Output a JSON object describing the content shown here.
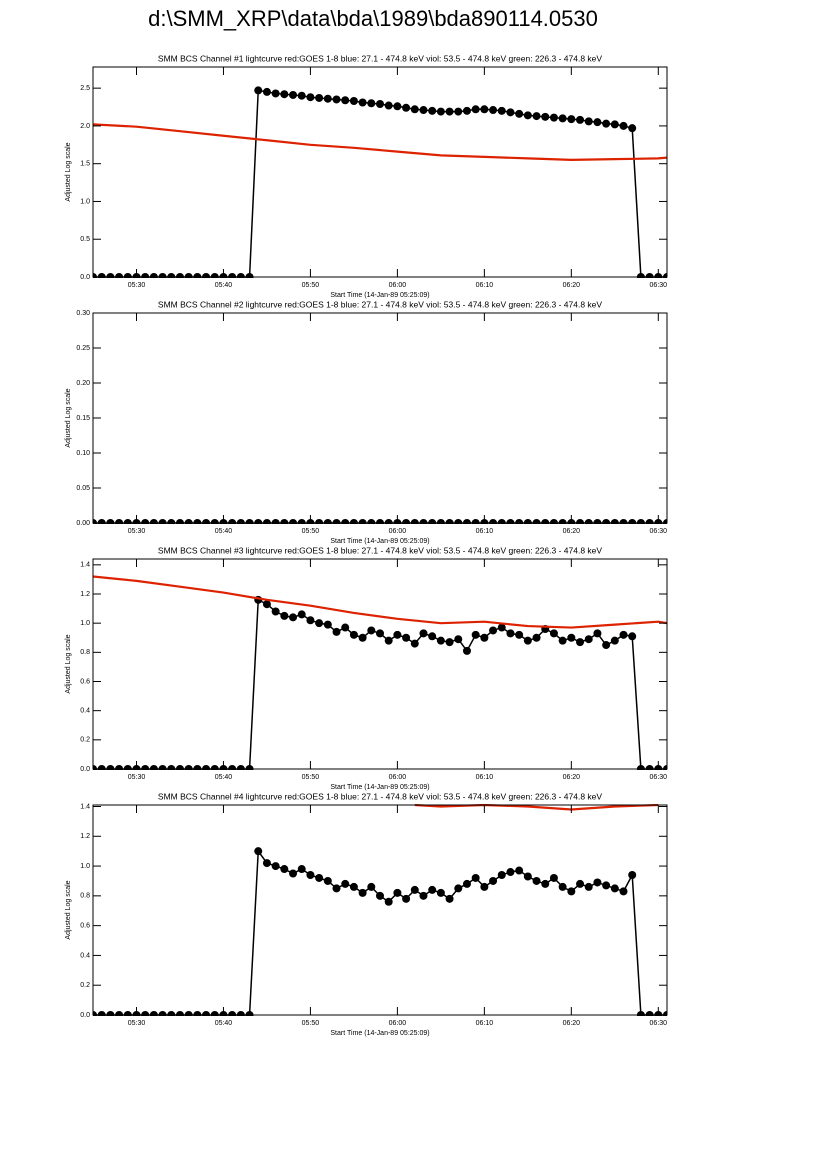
{
  "title": "d:\\SMM_XRP\\data\\bda\\1989\\bda890114.0530",
  "chart_data": [
    {
      "type": "line",
      "title": "SMM BCS Channel #1 lightcurve  red:GOES 1-8  blue: 27.1 - 474.8 keV  viol: 53.5 - 474.8 keV  green: 226.3 - 474.8 keV",
      "xlabel": "Start Time (14-Jan-89 05:25:09)",
      "ylabel": "Adjusted Log scale",
      "xlim": [
        "05:25",
        "06:31"
      ],
      "xticks": [
        "05:30",
        "05:40",
        "05:50",
        "06:00",
        "06:10",
        "06:20",
        "06:30"
      ],
      "ylim": [
        0,
        2.78
      ],
      "yticks": [
        {
          "value": 0,
          "label": "0.0"
        },
        0.5,
        {
          "value": 1,
          "label": "1.0"
        },
        1.5,
        {
          "value": 2,
          "label": "2.0"
        },
        2.5
      ],
      "series": [
        {
          "color": "#000000",
          "marker": true,
          "x": [
            "05:25",
            "05:26",
            "05:27",
            "05:28",
            "05:29",
            "05:30",
            "05:31",
            "05:32",
            "05:33",
            "05:34",
            "05:35",
            "05:36",
            "05:37",
            "05:38",
            "05:39",
            "05:40",
            "05:41",
            "05:42",
            "05:43",
            "05:44",
            "05:45",
            "05:46",
            "05:47",
            "05:48",
            "05:49",
            "05:50",
            "05:51",
            "05:52",
            "05:53",
            "05:54",
            "05:55",
            "05:56",
            "05:57",
            "05:58",
            "05:59",
            "06:00",
            "06:01",
            "06:02",
            "06:03",
            "06:04",
            "06:05",
            "06:06",
            "06:07",
            "06:08",
            "06:09",
            "06:10",
            "06:11",
            "06:12",
            "06:13",
            "06:14",
            "06:15",
            "06:16",
            "06:17",
            "06:18",
            "06:19",
            "06:20",
            "06:21",
            "06:22",
            "06:23",
            "06:24",
            "06:25",
            "06:26",
            "06:27",
            "06:28",
            "06:29",
            "06:30",
            "06:31"
          ],
          "values": [
            0,
            0,
            0,
            0,
            0,
            0,
            0,
            0,
            0,
            0,
            0,
            0,
            0,
            0,
            0,
            0,
            0,
            0,
            0,
            2.47,
            2.45,
            2.43,
            2.42,
            2.41,
            2.4,
            2.38,
            2.37,
            2.36,
            2.35,
            2.34,
            2.33,
            2.31,
            2.3,
            2.29,
            2.27,
            2.26,
            2.24,
            2.22,
            2.21,
            2.2,
            2.19,
            2.19,
            2.19,
            2.2,
            2.22,
            2.22,
            2.21,
            2.2,
            2.18,
            2.16,
            2.14,
            2.13,
            2.12,
            2.11,
            2.1,
            2.09,
            2.08,
            2.06,
            2.05,
            2.03,
            2.02,
            2.0,
            1.97,
            0,
            0,
            0,
            0
          ]
        },
        {
          "color": "#dd2200",
          "marker": false,
          "x": [
            "05:25",
            "05:30",
            "05:35",
            "05:40",
            "05:45",
            "05:50",
            "05:55",
            "06:00",
            "06:05",
            "06:10",
            "06:15",
            "06:20",
            "06:25",
            "06:30",
            "06:31"
          ],
          "values": [
            2.02,
            1.99,
            1.93,
            1.87,
            1.81,
            1.75,
            1.71,
            1.66,
            1.61,
            1.59,
            1.57,
            1.55,
            1.56,
            1.57,
            1.58
          ]
        }
      ]
    },
    {
      "type": "line",
      "title": "SMM BCS Channel #2 lightcurve  red:GOES 1-8  blue: 27.1 - 474.8 keV  viol: 53.5 - 474.8 keV  green: 226.3 - 474.8 keV",
      "xlabel": "Start Time (14-Jan-89 05:25:09)",
      "ylabel": "Adjusted Log scale",
      "xlim": [
        "05:25",
        "06:31"
      ],
      "xticks": [
        "05:30",
        "05:40",
        "05:50",
        "06:00",
        "06:10",
        "06:20",
        "06:30"
      ],
      "ylim": [
        0,
        0.3
      ],
      "yticks": [
        {
          "value": 0,
          "label": "0.00"
        },
        0.05,
        {
          "value": 0.1,
          "label": "0.10"
        },
        0.15,
        {
          "value": 0.2,
          "label": "0.20"
        },
        0.25,
        {
          "value": 0.3,
          "label": "0.30"
        }
      ],
      "series": [
        {
          "color": "#000000",
          "marker": true,
          "x": [
            "05:25",
            "05:26",
            "05:27",
            "05:28",
            "05:29",
            "05:30",
            "05:31",
            "05:32",
            "05:33",
            "05:34",
            "05:35",
            "05:36",
            "05:37",
            "05:38",
            "05:39",
            "05:40",
            "05:41",
            "05:42",
            "05:43",
            "05:44",
            "05:45",
            "05:46",
            "05:47",
            "05:48",
            "05:49",
            "05:50",
            "05:51",
            "05:52",
            "05:53",
            "05:54",
            "05:55",
            "05:56",
            "05:57",
            "05:58",
            "05:59",
            "06:00",
            "06:01",
            "06:02",
            "06:03",
            "06:04",
            "06:05",
            "06:06",
            "06:07",
            "06:08",
            "06:09",
            "06:10",
            "06:11",
            "06:12",
            "06:13",
            "06:14",
            "06:15",
            "06:16",
            "06:17",
            "06:18",
            "06:19",
            "06:20",
            "06:21",
            "06:22",
            "06:23",
            "06:24",
            "06:25",
            "06:26",
            "06:27",
            "06:28",
            "06:29",
            "06:30",
            "06:31"
          ],
          "values": [
            0,
            0,
            0,
            0,
            0,
            0,
            0,
            0,
            0,
            0,
            0,
            0,
            0,
            0,
            0,
            0,
            0,
            0,
            0,
            0,
            0,
            0,
            0,
            0,
            0,
            0,
            0,
            0,
            0,
            0,
            0,
            0,
            0,
            0,
            0,
            0,
            0,
            0,
            0,
            0,
            0,
            0,
            0,
            0,
            0,
            0,
            0,
            0,
            0,
            0,
            0,
            0,
            0,
            0,
            0,
            0,
            0,
            0,
            0,
            0,
            0,
            0,
            0,
            0,
            0,
            0,
            0
          ]
        }
      ]
    },
    {
      "type": "line",
      "title": "SMM BCS Channel #3 lightcurve  red:GOES 1-8  blue: 27.1 - 474.8 keV  viol: 53.5 - 474.8 keV  green: 226.3 - 474.8 keV",
      "xlabel": "Start Time (14-Jan-89 05:25:09)",
      "ylabel": "Adjusted Log scale",
      "xlim": [
        "05:25",
        "06:31"
      ],
      "xticks": [
        "05:30",
        "05:40",
        "05:50",
        "06:00",
        "06:10",
        "06:20",
        "06:30"
      ],
      "ylim": [
        0,
        1.44
      ],
      "yticks": [
        {
          "value": 0,
          "label": "0.0"
        },
        0.2,
        0.4,
        0.6,
        0.8,
        {
          "value": 1,
          "label": "1.0"
        },
        1.2,
        1.4
      ],
      "series": [
        {
          "color": "#000000",
          "marker": true,
          "x": [
            "05:25",
            "05:26",
            "05:27",
            "05:28",
            "05:29",
            "05:30",
            "05:31",
            "05:32",
            "05:33",
            "05:34",
            "05:35",
            "05:36",
            "05:37",
            "05:38",
            "05:39",
            "05:40",
            "05:41",
            "05:42",
            "05:43",
            "05:44",
            "05:45",
            "05:46",
            "05:47",
            "05:48",
            "05:49",
            "05:50",
            "05:51",
            "05:52",
            "05:53",
            "05:54",
            "05:55",
            "05:56",
            "05:57",
            "05:58",
            "05:59",
            "06:00",
            "06:01",
            "06:02",
            "06:03",
            "06:04",
            "06:05",
            "06:06",
            "06:07",
            "06:08",
            "06:09",
            "06:10",
            "06:11",
            "06:12",
            "06:13",
            "06:14",
            "06:15",
            "06:16",
            "06:17",
            "06:18",
            "06:19",
            "06:20",
            "06:21",
            "06:22",
            "06:23",
            "06:24",
            "06:25",
            "06:26",
            "06:27",
            "06:28",
            "06:29",
            "06:30",
            "06:31"
          ],
          "values": [
            0,
            0,
            0,
            0,
            0,
            0,
            0,
            0,
            0,
            0,
            0,
            0,
            0,
            0,
            0,
            0,
            0,
            0,
            0,
            1.16,
            1.13,
            1.08,
            1.05,
            1.04,
            1.06,
            1.02,
            1.0,
            0.99,
            0.94,
            0.97,
            0.92,
            0.9,
            0.95,
            0.93,
            0.88,
            0.92,
            0.9,
            0.86,
            0.93,
            0.91,
            0.88,
            0.87,
            0.89,
            0.81,
            0.92,
            0.9,
            0.95,
            0.97,
            0.93,
            0.92,
            0.88,
            0.9,
            0.96,
            0.93,
            0.88,
            0.9,
            0.87,
            0.89,
            0.93,
            0.85,
            0.88,
            0.92,
            0.91,
            0,
            0,
            0,
            0
          ]
        },
        {
          "color": "#dd2200",
          "marker": false,
          "x": [
            "05:25",
            "05:30",
            "05:35",
            "05:40",
            "05:45",
            "05:50",
            "05:55",
            "06:00",
            "06:05",
            "06:10",
            "06:15",
            "06:20",
            "06:25",
            "06:30",
            "06:31"
          ],
          "values": [
            1.32,
            1.29,
            1.25,
            1.21,
            1.16,
            1.12,
            1.07,
            1.03,
            1.0,
            1.01,
            0.98,
            0.97,
            0.99,
            1.01,
            1.0
          ]
        }
      ]
    },
    {
      "type": "line",
      "title": "SMM BCS Channel #4 lightcurve  red:GOES 1-8  blue: 27.1 - 474.8 keV  viol: 53.5 - 474.8 keV  green: 226.3 - 474.8 keV",
      "xlabel": "Start Time (14-Jan-89 05:25:09)",
      "ylabel": "Adjusted Log scale",
      "xlim": [
        "05:25",
        "06:31"
      ],
      "xticks": [
        "05:30",
        "05:40",
        "05:50",
        "06:00",
        "06:10",
        "06:20",
        "06:30"
      ],
      "ylim": [
        0,
        1.41
      ],
      "yticks": [
        {
          "value": 0,
          "label": "0.0"
        },
        0.2,
        0.4,
        0.6,
        0.8,
        {
          "value": 1,
          "label": "1.0"
        },
        1.2,
        1.4
      ],
      "series": [
        {
          "color": "#000000",
          "marker": true,
          "x": [
            "05:25",
            "05:26",
            "05:27",
            "05:28",
            "05:29",
            "05:30",
            "05:31",
            "05:32",
            "05:33",
            "05:34",
            "05:35",
            "05:36",
            "05:37",
            "05:38",
            "05:39",
            "05:40",
            "05:41",
            "05:42",
            "05:43",
            "05:44",
            "05:45",
            "05:46",
            "05:47",
            "05:48",
            "05:49",
            "05:50",
            "05:51",
            "05:52",
            "05:53",
            "05:54",
            "05:55",
            "05:56",
            "05:57",
            "05:58",
            "05:59",
            "06:00",
            "06:01",
            "06:02",
            "06:03",
            "06:04",
            "06:05",
            "06:06",
            "06:07",
            "06:08",
            "06:09",
            "06:10",
            "06:11",
            "06:12",
            "06:13",
            "06:14",
            "06:15",
            "06:16",
            "06:17",
            "06:18",
            "06:19",
            "06:20",
            "06:21",
            "06:22",
            "06:23",
            "06:24",
            "06:25",
            "06:26",
            "06:27",
            "06:28",
            "06:29",
            "06:30",
            "06:31"
          ],
          "values": [
            0,
            0,
            0,
            0,
            0,
            0,
            0,
            0,
            0,
            0,
            0,
            0,
            0,
            0,
            0,
            0,
            0,
            0,
            0,
            1.1,
            1.02,
            1.0,
            0.98,
            0.95,
            0.98,
            0.94,
            0.92,
            0.9,
            0.85,
            0.88,
            0.86,
            0.82,
            0.86,
            0.8,
            0.76,
            0.82,
            0.78,
            0.84,
            0.8,
            0.84,
            0.82,
            0.78,
            0.85,
            0.88,
            0.92,
            0.86,
            0.9,
            0.94,
            0.96,
            0.97,
            0.93,
            0.9,
            0.88,
            0.92,
            0.86,
            0.83,
            0.88,
            0.86,
            0.89,
            0.87,
            0.85,
            0.83,
            0.94,
            0,
            0,
            0,
            0
          ]
        },
        {
          "color": "#dd2200",
          "marker": false,
          "x": [
            "06:02",
            "06:05",
            "06:10",
            "06:15",
            "06:20",
            "06:25",
            "06:30"
          ],
          "values": [
            1.41,
            1.4,
            1.41,
            1.4,
            1.38,
            1.4,
            1.41
          ]
        }
      ]
    }
  ]
}
